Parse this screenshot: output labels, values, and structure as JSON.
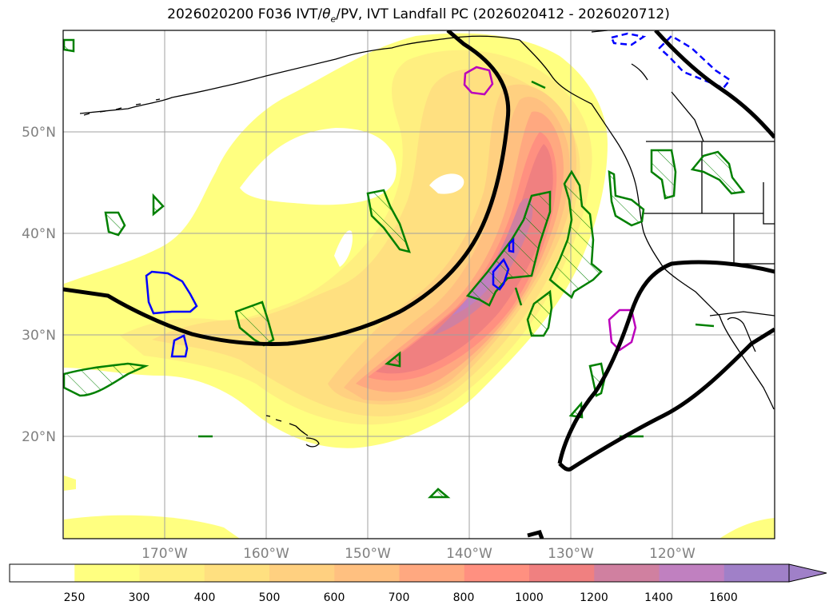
{
  "title": "2026020200 F036 IVT/θe/PV, IVT Landfall PC (2026020412 - 2026020712)",
  "title_parts": {
    "prefix": "2026020200 F036 IVT/",
    "theta": "θ",
    "theta_sub": "e",
    "suffix": "/PV, IVT Landfall PC (2026020412 - 2026020712)"
  },
  "map": {
    "lon_ticks": [
      "170°W",
      "160°W",
      "150°W",
      "140°W",
      "130°W",
      "120°W"
    ],
    "lat_ticks": [
      "50°N",
      "40°N",
      "30°N",
      "20°N"
    ],
    "tick_color": "#808080"
  },
  "colorbar": {
    "labels": [
      "250",
      "300",
      "400",
      "500",
      "600",
      "700",
      "800",
      "1000",
      "1200",
      "1400",
      "1600"
    ],
    "colors": [
      "#ffffff",
      "#ffff80",
      "#ffef80",
      "#ffe080",
      "#ffd080",
      "#ffc080",
      "#ffa880",
      "#ff9080",
      "#f08080",
      "#d080a0",
      "#c080c0",
      "#a080c8"
    ],
    "extend": "max"
  },
  "legend_colors": {
    "pv_positive": "#008000",
    "pv_negative": "#0000ff",
    "theta_e": "#000000",
    "landfall": "#bb00bb",
    "coast": "#000000"
  }
}
